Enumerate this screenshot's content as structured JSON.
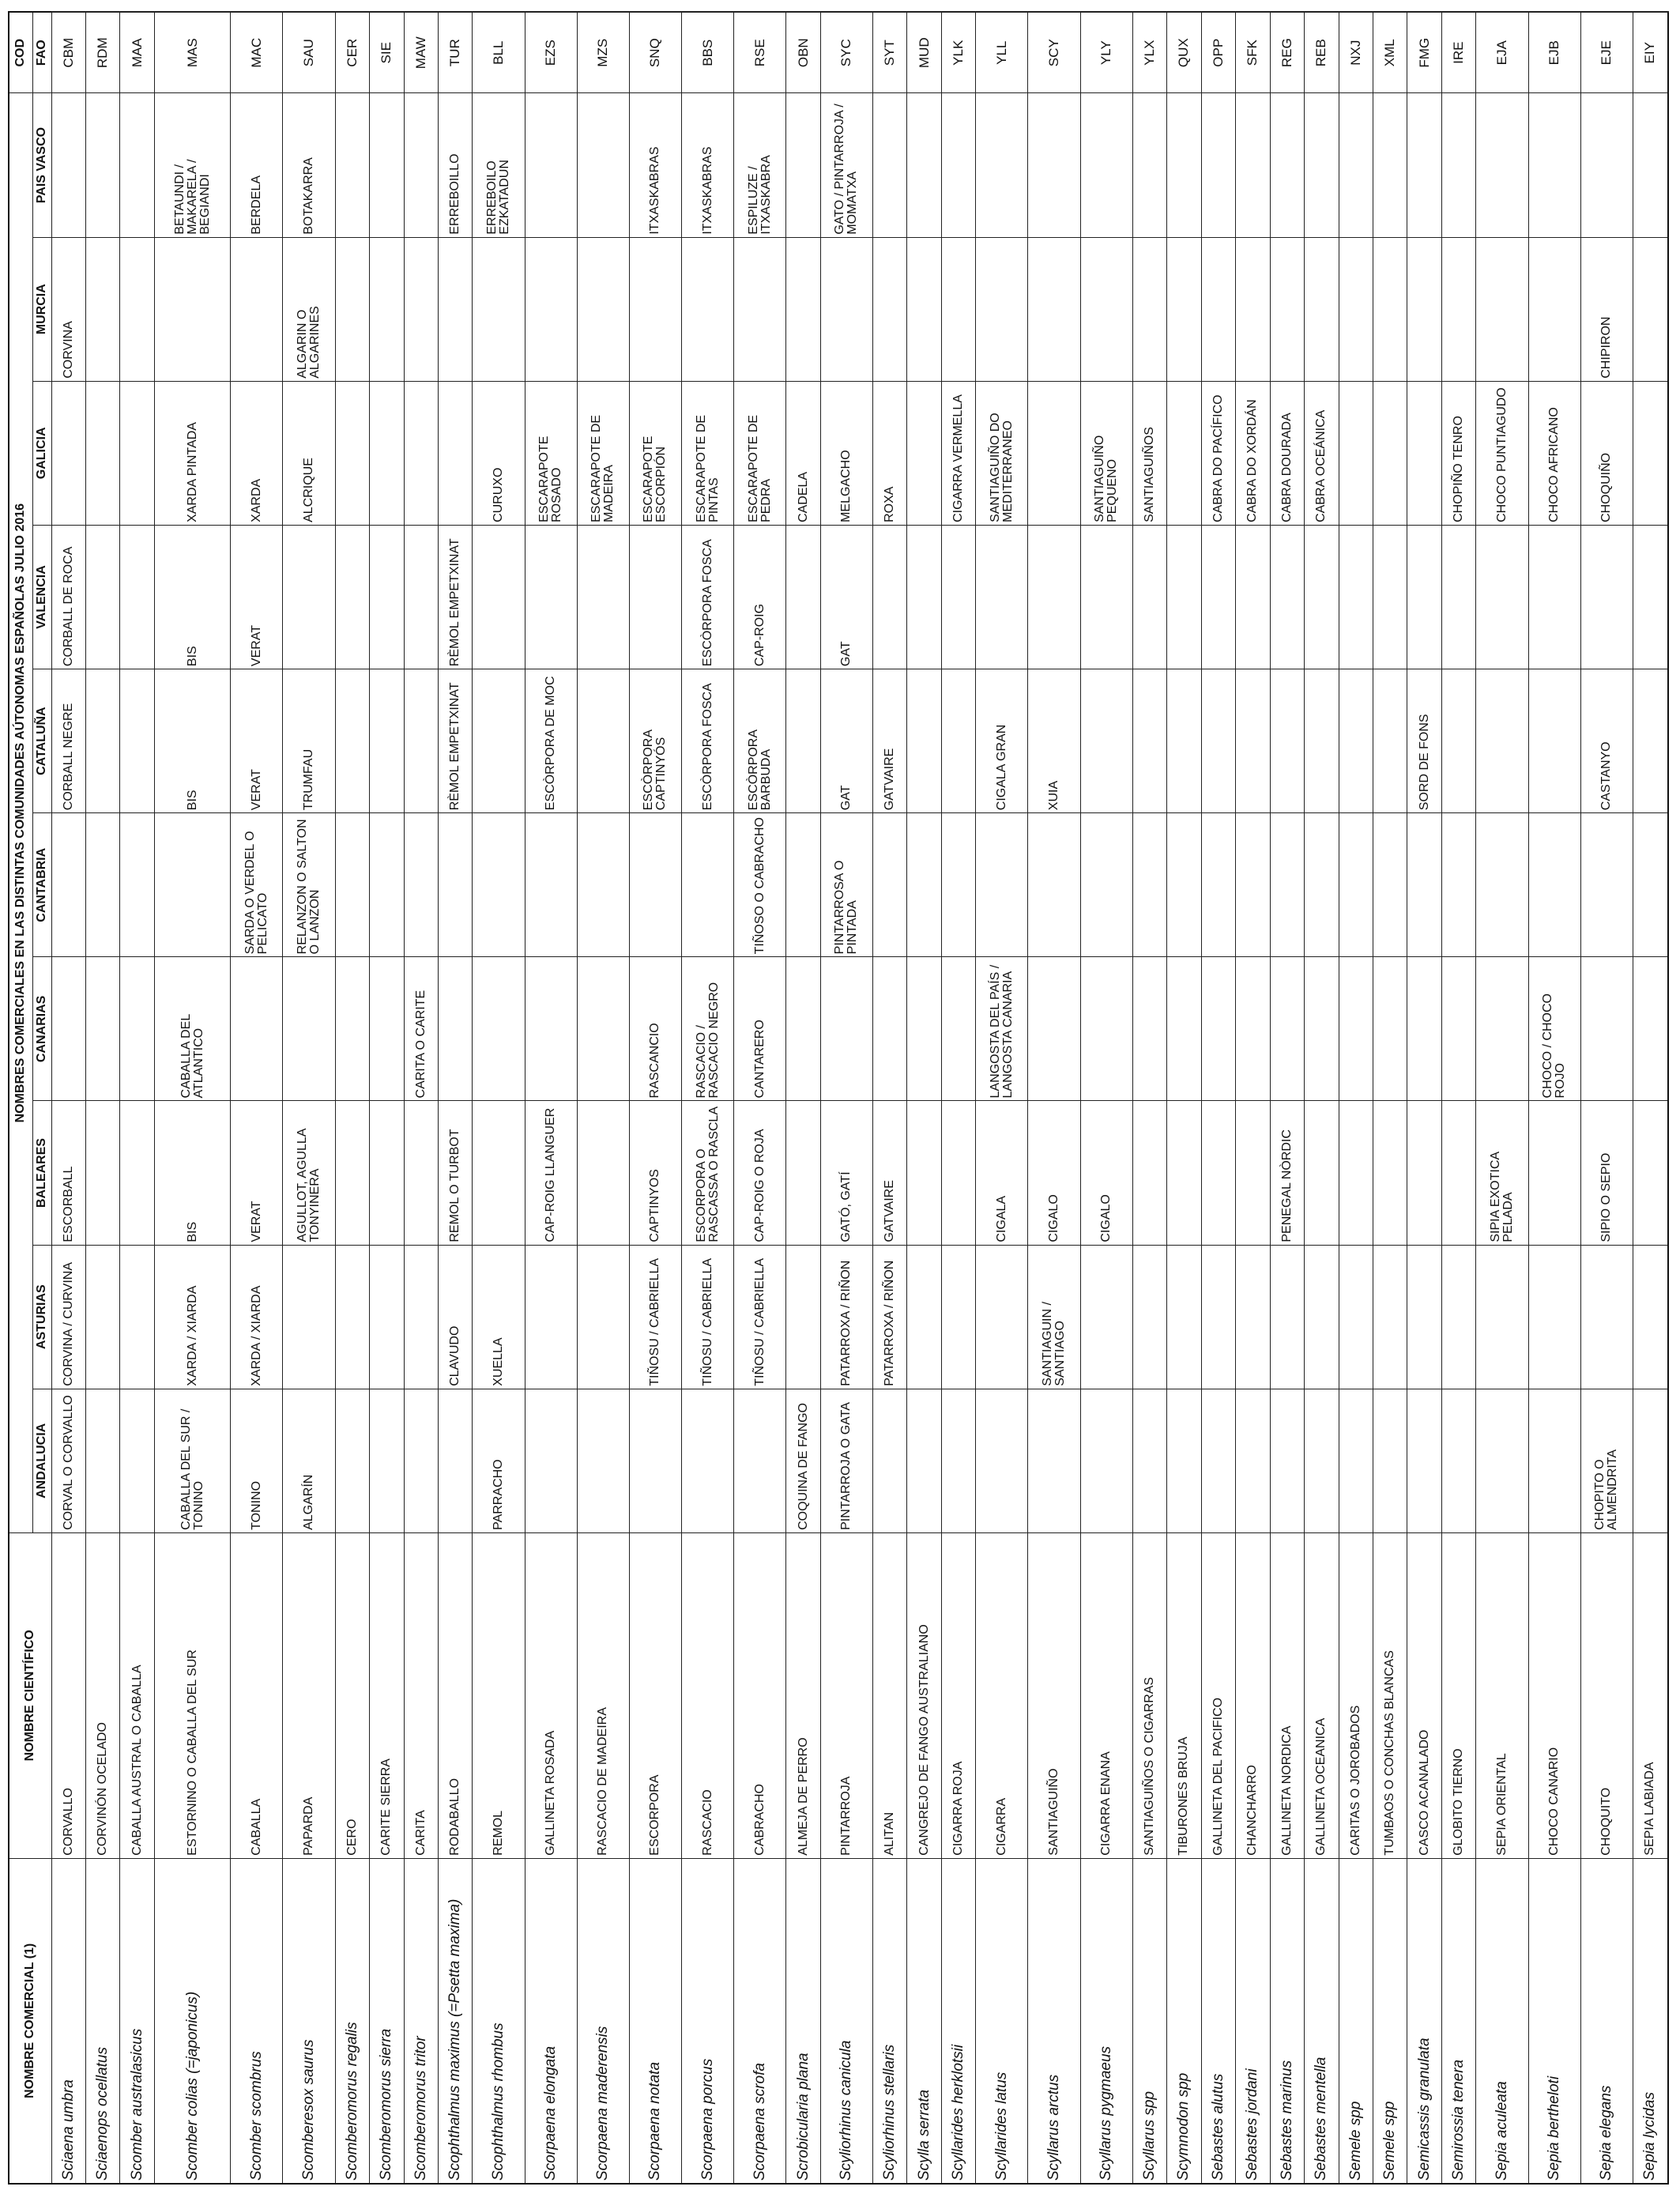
{
  "headers": {
    "top_title": "NOMBRES COMERCIALES EN LAS DISTINTAS COMUNIDADES AÚTONOMAS ESPAÑOLAS JULIO 2016",
    "comercial": "NOMBRE COMERCIAL (1)",
    "cientifico": "NOMBRE CIENTÍFICO",
    "cod": "COD",
    "fao": "FAO",
    "regions": [
      "ANDALUCIA",
      "ASTURIAS",
      "BALEARES",
      "CANARIAS",
      "CANTABRIA",
      "CATALUÑA",
      "VALENCIA",
      "GALICIA",
      "MURCIA",
      "PAIS VASCO"
    ]
  },
  "rows": [
    {
      "com": "Sciaena umbra",
      "sci": "CORVALLO",
      "r": [
        "CORVAL O CORVALLO",
        "CORVINA / CURVINA",
        "ESCORBALL",
        "",
        "",
        "CORBALL NEGRE",
        "CORBALL DE ROCA",
        "",
        "CORVINA",
        ""
      ],
      "fao": "CBM"
    },
    {
      "com": "Sciaenops ocellatus",
      "sci": "CORVINÓN OCELADO",
      "r": [
        "",
        "",
        "",
        "",
        "",
        "",
        "",
        "",
        "",
        ""
      ],
      "fao": "RDM"
    },
    {
      "com": "Scomber australasicus",
      "sci": "CABALLA AUSTRAL O CABALLA",
      "r": [
        "",
        "",
        "",
        "",
        "",
        "",
        "",
        "",
        "",
        ""
      ],
      "fao": "MAA"
    },
    {
      "com": "Scomber colias (=japonicus)",
      "sci": "ESTORNINO O CABALLA DEL SUR",
      "r": [
        "CABALLA DEL SUR / TONINO",
        "XARDA / XIARDA",
        "BIS",
        "CABALLA DEL ATLANTICO",
        "",
        "BIS",
        "BIS",
        "XARDA PINTADA",
        "",
        "BETAUNDI / MAKARELA / BEGIANDI"
      ],
      "fao": "MAS"
    },
    {
      "com": "Scomber scombrus",
      "sci": "CABALLA",
      "r": [
        "TONINO",
        "XARDA / XIARDA",
        "VERAT",
        "",
        "SARDA O VERDEL O PELICATO",
        "VERAT",
        "VERAT",
        "XARDA",
        "",
        "BERDELA"
      ],
      "fao": "MAC"
    },
    {
      "com": "Scomberesox saurus",
      "sci": "PAPARDA",
      "r": [
        "ALGARÍN",
        "",
        "AGULLOT, AGULLA TONYINERA",
        "",
        "RELANZON O SALTON O LANZON",
        "TRUMFAU",
        "",
        "ALCRIQUE",
        "ALGARIN O ALGARINES",
        "BOTAKARRA"
      ],
      "fao": "SAU"
    },
    {
      "com": "Scomberomorus regalis",
      "sci": "CERO",
      "r": [
        "",
        "",
        "",
        "",
        "",
        "",
        "",
        "",
        "",
        ""
      ],
      "fao": "CER"
    },
    {
      "com": "Scomberomorus sierra",
      "sci": "CARITE SIERRA",
      "r": [
        "",
        "",
        "",
        "",
        "",
        "",
        "",
        "",
        "",
        ""
      ],
      "fao": "SIE"
    },
    {
      "com": "Scomberomorus tritor",
      "sci": "CARITA",
      "r": [
        "",
        "",
        "",
        "CARITA O CARITE",
        "",
        "",
        "",
        "",
        "",
        ""
      ],
      "fao": "MAW"
    },
    {
      "com": "Scophthalmus maximus (=Psetta maxima)",
      "sci": "RODABALLO",
      "r": [
        "",
        "CLAVUDO",
        "REMOL O TURBOT",
        "",
        "",
        "RÈMOL EMPETXINAT",
        "RÈMOL EMPETXINAT",
        "",
        "",
        "ERREBOILLO"
      ],
      "fao": "TUR"
    },
    {
      "com": "Scophthalmus rhombus",
      "sci": "REMOL",
      "r": [
        "PARRACHO",
        "XUELLA",
        "",
        "",
        "",
        "",
        "",
        "CURUXO",
        "",
        "ERREBOILO EZKATADUN"
      ],
      "fao": "BLL"
    },
    {
      "com": "Scorpaena elongata",
      "sci": "GALLINETA ROSADA",
      "r": [
        "",
        "",
        "CAP-ROIG LLANGUER",
        "",
        "",
        "ESCÒRPORA DE MOC",
        "",
        "ESCARAPOTE ROSADO",
        "",
        ""
      ],
      "fao": "EZS"
    },
    {
      "com": "Scorpaena maderensis",
      "sci": "RASCACIO DE MADEIRA",
      "r": [
        "",
        "",
        "",
        "",
        "",
        "",
        "",
        "ESCARAPOTE DE MADEIRA",
        "",
        ""
      ],
      "fao": "MZS"
    },
    {
      "com": "Scorpaena notata",
      "sci": "ESCORPORA",
      "r": [
        "",
        "TIÑOSU / CABRIELLA",
        "CAPTINYOS",
        "RASCANCIO",
        "",
        "ESCÒRPORA CAPTINYÓS",
        "",
        "ESCARAPOTE ESCORPIÓN",
        "",
        "ITXASKABRAS"
      ],
      "fao": "SNQ"
    },
    {
      "com": "Scorpaena porcus",
      "sci": "RASCACIO",
      "r": [
        "",
        "TIÑOSU / CABRIELLA",
        "ESCORPORA O RASCASSA O RASCLA",
        "RASCACIO / RASCACIO NEGRO",
        "",
        "ESCÒRPORA FOSCA",
        "ESCÒRPORA FOSCA",
        "ESCARAPOTE DE PINTAS",
        "",
        "ITXASKABRAS"
      ],
      "fao": "BBS"
    },
    {
      "com": "Scorpaena scrofa",
      "sci": "CABRACHO",
      "r": [
        "",
        "TIÑOSU / CABRIELLA",
        "CAP-ROIG O ROJA",
        "CANTARERO",
        "TIÑOSO O CABRACHO",
        "ESCÒRPORA BARBUDA",
        "CAP-ROIG",
        "ESCARAPOTE DE PEDRA",
        "",
        "ESPILUZE / ITXASKABRA"
      ],
      "fao": "RSE"
    },
    {
      "com": "Scrobicularia plana",
      "sci": "ALMEJA DE PERRO",
      "r": [
        "COQUINA DE FANGO",
        "",
        "",
        "",
        "",
        "",
        "",
        "CADELA",
        "",
        ""
      ],
      "fao": "OBN"
    },
    {
      "com": "Scyliorhinus canicula",
      "sci": "PINTARROJA",
      "r": [
        "PINTARROJA O GATA",
        "PATARROXA / RIÑON",
        "GATÓ, GATÍ",
        "",
        "PINTARROSA O PINTADA",
        "GAT",
        "GAT",
        "MELGACHO",
        "",
        "GATO / PINTARROJA / MOMATXA"
      ],
      "fao": "SYC"
    },
    {
      "com": "Scyliorhinus stellaris",
      "sci": "ALITAN",
      "r": [
        "",
        "PATARROXA / RIÑON",
        "GATVAIRE",
        "",
        "",
        "GATVAIRE",
        "",
        "ROXA",
        "",
        ""
      ],
      "fao": "SYT"
    },
    {
      "com": "Scylla serrata",
      "sci": "CANGREJO DE FANGO AUSTRALIANO",
      "r": [
        "",
        "",
        "",
        "",
        "",
        "",
        "",
        "",
        "",
        ""
      ],
      "fao": "MUD"
    },
    {
      "com": "Scyllarides herklotsii",
      "sci": "CIGARRA ROJA",
      "r": [
        "",
        "",
        "",
        "",
        "",
        "",
        "",
        "CIGARRA VERMELLA",
        "",
        ""
      ],
      "fao": "YLK"
    },
    {
      "com": "Scyllarides latus",
      "sci": "CIGARRA",
      "r": [
        "",
        "",
        "CIGALA",
        "LANGOSTA DEL PAÍS / LANGOSTA CANARIA",
        "",
        "CIGALA GRAN",
        "",
        "SANTIAGUIÑO DO MEDITERRANEO",
        "",
        ""
      ],
      "fao": "YLL"
    },
    {
      "com": "Scyllarus arctus",
      "sci": "SANTIAGUIÑO",
      "r": [
        "",
        "SANTIAGUIN / SANTIAGO",
        "CIGALO",
        "",
        "",
        "XUIA",
        "",
        "",
        "",
        ""
      ],
      "fao": "SCY"
    },
    {
      "com": "Scyllarus pygmaeus",
      "sci": "CIGARRA ENANA",
      "r": [
        "",
        "",
        "CIGALO",
        "",
        "",
        "",
        "",
        "SANTIAGUIÑO PEQUENO",
        "",
        ""
      ],
      "fao": "YLY"
    },
    {
      "com": "Scyllarus  spp",
      "sci": "SANTIAGUIÑOS O CIGARRAS",
      "r": [
        "",
        "",
        "",
        "",
        "",
        "",
        "",
        "SANTIAGUIÑOS",
        "",
        ""
      ],
      "fao": "YLX"
    },
    {
      "com": "Scymnodon  spp",
      "sci": "TIBURONES BRUJA",
      "r": [
        "",
        "",
        "",
        "",
        "",
        "",
        "",
        "",
        "",
        ""
      ],
      "fao": "QUX"
    },
    {
      "com": "Sebastes alutus",
      "sci": "GALLINETA DEL PACIFICO",
      "r": [
        "",
        "",
        "",
        "",
        "",
        "",
        "",
        "CABRA DO PACÍFICO",
        "",
        ""
      ],
      "fao": "OPP"
    },
    {
      "com": "Sebastes jordani",
      "sci": "CHANCHARRO",
      "r": [
        "",
        "",
        "",
        "",
        "",
        "",
        "",
        "CABRA DO XORDÁN",
        "",
        ""
      ],
      "fao": "SFK"
    },
    {
      "com": "Sebastes marinus",
      "sci": "GALLINETA NORDICA",
      "r": [
        "",
        "",
        "PENEGAL NÒRDIC",
        "",
        "",
        "",
        "",
        "CABRA DOURADA",
        "",
        ""
      ],
      "fao": "REG"
    },
    {
      "com": "Sebastes mentella",
      "sci": "GALLINETA OCEANICA",
      "r": [
        "",
        "",
        "",
        "",
        "",
        "",
        "",
        "CABRA OCEÁNICA",
        "",
        ""
      ],
      "fao": "REB"
    },
    {
      "com": "Semele  spp",
      "sci": "CARITAS O JOROBADOS",
      "r": [
        "",
        "",
        "",
        "",
        "",
        "",
        "",
        "",
        "",
        ""
      ],
      "fao": "NXJ"
    },
    {
      "com": "Semele  spp",
      "sci": "TUMBAOS O CONCHAS BLANCAS",
      "r": [
        "",
        "",
        "",
        "",
        "",
        "",
        "",
        "",
        "",
        ""
      ],
      "fao": "XML"
    },
    {
      "com": "Semicassis granulata",
      "sci": "CASCO ACANALADO",
      "r": [
        "",
        "",
        "",
        "",
        "",
        "SORD DE FONS",
        "",
        "",
        "",
        ""
      ],
      "fao": "FMG"
    },
    {
      "com": "Semirossia tenera",
      "sci": "GLOBITO TIERNO",
      "r": [
        "",
        "",
        "",
        "",
        "",
        "",
        "",
        "CHOPIÑO TENRO",
        "",
        ""
      ],
      "fao": "IRE"
    },
    {
      "com": "Sepia aculeata",
      "sci": "SEPIA ORIENTAL",
      "r": [
        "",
        "",
        "SIPIA EXOTICA PELADA",
        "",
        "",
        "",
        "",
        "CHOCO PUNTIAGUDO",
        "",
        ""
      ],
      "fao": "EJA"
    },
    {
      "com": "Sepia bertheloti",
      "sci": "CHOCO CANARIO",
      "r": [
        "",
        "",
        "",
        "CHOCO / CHOCO ROJO",
        "",
        "",
        "",
        "CHOCO AFRICANO",
        "",
        ""
      ],
      "fao": "EJB"
    },
    {
      "com": "Sepia elegans",
      "sci": "CHOQUITO",
      "r": [
        "CHOPITO O ALMENDRITA",
        "",
        "SIPIO O SEPIO",
        "",
        "",
        "CASTANYO",
        "",
        "CHOQUIÑO",
        "CHIPIRON",
        ""
      ],
      "fao": "EJE"
    },
    {
      "com": "Sepia lycidas",
      "sci": "SEPIA LABIADA",
      "r": [
        "",
        "",
        "",
        "",
        "",
        "",
        "",
        "",
        "",
        ""
      ],
      "fao": "EIY"
    }
  ]
}
